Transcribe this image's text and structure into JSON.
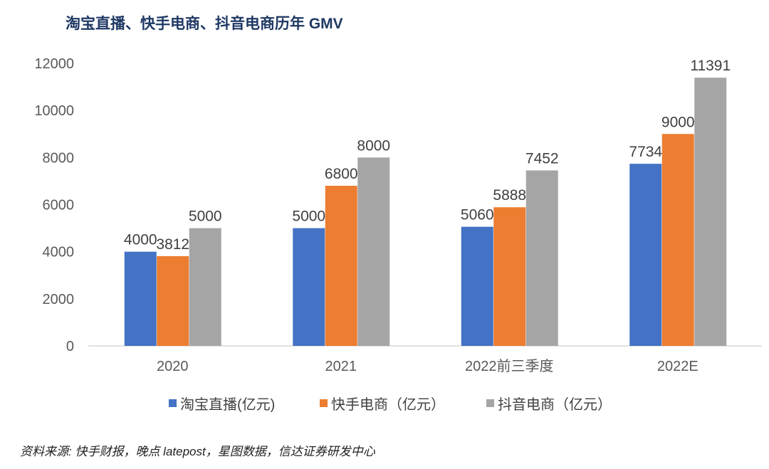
{
  "chart_data": {
    "type": "bar",
    "title": "淘宝直播、快手电商、抖音电商历年 GMV",
    "categories": [
      "2020",
      "2021",
      "2022前三季度",
      "2022E"
    ],
    "series": [
      {
        "name": "淘宝直播(亿元)",
        "values": [
          4000,
          5000,
          5060,
          7734
        ],
        "color": "#4472c4"
      },
      {
        "name": "快手电商（亿元）",
        "values": [
          3812,
          6800,
          5888,
          9000
        ],
        "color": "#ed7d31"
      },
      {
        "name": "抖音电商（亿元）",
        "values": [
          5000,
          8000,
          7452,
          11391
        ],
        "color": "#a5a5a5"
      }
    ],
    "yticks": [
      0,
      2000,
      4000,
      6000,
      8000,
      10000,
      12000
    ],
    "ylim": [
      0,
      12000
    ],
    "grid": false,
    "legend": "bottom",
    "source": "资料来源: 快手财报，晚点 latepost，星图数据，信达证券研发中心"
  }
}
